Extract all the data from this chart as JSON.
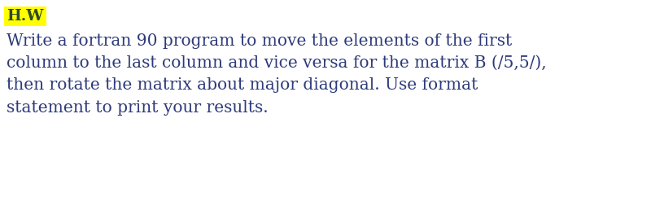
{
  "bg_color": "#ffffff",
  "hw_text": "H.W",
  "hw_bg_color": "#ffff00",
  "hw_text_color": "#2d4a2d",
  "hw_font_size": 13.5,
  "body_text": "Write a fortran 90 program to move the elements of the first\ncolumn to the last column and vice versa for the matrix B (/5,5/),\nthen rotate the matrix about major diagonal. Use format\nstatement to print your results.",
  "body_text_color": "#2d3a7a",
  "body_font_size": 14.5,
  "font_family": "DejaVu Serif"
}
